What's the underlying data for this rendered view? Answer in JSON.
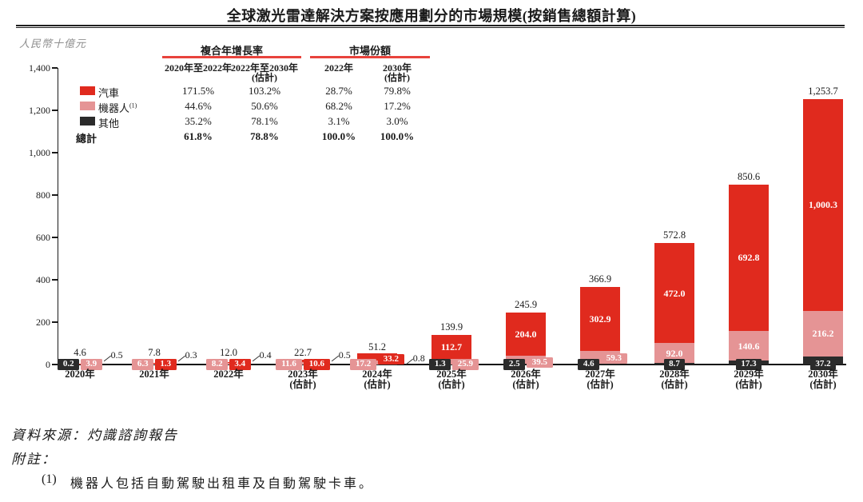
{
  "title": "全球激光雷達解決方案按應用劃分的市場規模(按銷售總額計算)",
  "unit_label": "人民幣十億元",
  "colors": {
    "auto": "#e02a1e",
    "robot": "#e59495",
    "other": "#2b2b2b",
    "rule_red": "#e8433c",
    "axis": "#1a1a1a"
  },
  "table": {
    "group_headers": [
      "複合年增長率",
      "市場份額"
    ],
    "col_headers": [
      {
        "line1": "2020年至2022年",
        "line2": ""
      },
      {
        "line1": "2022年至2030年",
        "line2": "(估計)"
      },
      {
        "line1": "2022年",
        "line2": ""
      },
      {
        "line1": "2030年",
        "line2": "(估計)"
      }
    ],
    "rows": [
      {
        "name": "汽車",
        "sup": "",
        "swatch": "auto",
        "values": [
          "171.5%",
          "103.2%",
          "28.7%",
          "79.8%"
        ]
      },
      {
        "name": "機器人",
        "sup": "(1)",
        "swatch": "robot",
        "values": [
          "44.6%",
          "50.6%",
          "68.2%",
          "17.2%"
        ]
      },
      {
        "name": "其他",
        "sup": "",
        "swatch": "other",
        "values": [
          "35.2%",
          "78.1%",
          "3.1%",
          "3.0%"
        ]
      }
    ],
    "total_row": {
      "name": "總計",
      "values": [
        "61.8%",
        "78.8%",
        "100.0%",
        "100.0%"
      ]
    }
  },
  "chart_data": {
    "type": "bar",
    "stacked": true,
    "title": "全球激光雷達解決方案按應用劃分的市場規模(按銷售總額計算)",
    "ylabel": "人民幣十億元",
    "ylim": [
      0,
      1400
    ],
    "yticks": [
      "0",
      "200",
      "400",
      "600",
      "800",
      "1,000",
      "1,200",
      "1,400"
    ],
    "grid": false,
    "legend_position": "top-left-table",
    "categories": [
      "2020年",
      "2021年",
      "2022年",
      "2023年",
      "2024年",
      "2025年",
      "2026年",
      "2027年",
      "2028年",
      "2029年",
      "2030年"
    ],
    "estimate_suffix": "(估計)",
    "estimate_from_index": 3,
    "series": [
      {
        "name": "其他",
        "key": "other",
        "values": [
          0.2,
          0.3,
          0.4,
          0.5,
          0.8,
          1.3,
          2.5,
          4.6,
          8.7,
          17.3,
          37.2
        ]
      },
      {
        "name": "機器人",
        "key": "robot",
        "values": [
          3.9,
          6.3,
          8.2,
          11.6,
          17.2,
          25.9,
          39.5,
          59.3,
          92.0,
          140.6,
          216.2
        ]
      },
      {
        "name": "汽車",
        "key": "auto",
        "values": [
          0.5,
          1.3,
          3.4,
          10.6,
          33.2,
          112.7,
          204.0,
          302.9,
          472.0,
          692.8,
          1000.3
        ]
      }
    ],
    "labels": {
      "other": [
        "0.2",
        "0.3",
        "0.4",
        "0.5",
        "0.8",
        "1.3",
        "2.5",
        "4.6",
        "8.7",
        "17.3",
        "37.2"
      ],
      "robot": [
        "3.9",
        "6.3",
        "8.2",
        "11.6",
        "17.2",
        "25.9",
        "39.5",
        "59.3",
        "92.0",
        "140.6",
        "216.2"
      ],
      "auto": [
        "0.5",
        "1.3",
        "3.4",
        "10.6",
        "33.2",
        "112.7",
        "204.0",
        "302.9",
        "472.0",
        "692.8",
        "1,000.3"
      ],
      "totals": [
        "4.6",
        "7.8",
        "12.0",
        "22.7",
        "51.2",
        "139.9",
        "245.9",
        "366.9",
        "572.8",
        "850.6",
        "1,253.7"
      ]
    }
  },
  "footer": {
    "source": "資料來源：灼識諮詢報告",
    "notes_label": "附註：",
    "notes": [
      {
        "num": "(1)",
        "text": "機器人包括自動駕駛出租車及自動駕駛卡車。"
      }
    ]
  }
}
